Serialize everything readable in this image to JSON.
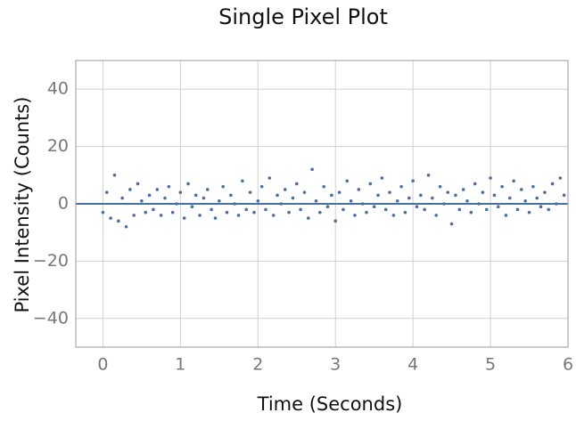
{
  "chart_data": {
    "type": "scatter",
    "title": "Single Pixel Plot",
    "x_label": "Time (Seconds)",
    "y_label": "Pixel Intensity (Counts)",
    "color": "#4a6fa5",
    "hline": 0,
    "grid": true,
    "xlim": [
      -0.35,
      6
    ],
    "ylim": [
      -50,
      50
    ],
    "xticks": [
      0,
      1,
      2,
      3,
      4,
      5,
      6
    ],
    "yticks": [
      {
        "value": -40,
        "label": "−40"
      },
      {
        "value": -20,
        "label": "−20"
      },
      0,
      20,
      40
    ],
    "x": [
      0,
      0.05,
      0.1,
      0.15,
      0.2,
      0.25,
      0.3,
      0.35,
      0.4,
      0.45,
      0.5,
      0.55,
      0.6,
      0.65,
      0.7,
      0.75,
      0.8,
      0.85,
      0.9,
      0.95,
      1,
      1.05,
      1.1,
      1.15,
      1.2,
      1.25,
      1.3,
      1.35,
      1.4,
      1.45,
      1.5,
      1.55,
      1.6,
      1.65,
      1.7,
      1.75,
      1.8,
      1.85,
      1.9,
      1.95,
      2,
      2.05,
      2.1,
      2.15,
      2.2,
      2.25,
      2.3,
      2.35,
      2.4,
      2.45,
      2.5,
      2.55,
      2.6,
      2.65,
      2.7,
      2.75,
      2.8,
      2.85,
      2.9,
      2.95,
      3,
      3.05,
      3.1,
      3.15,
      3.2,
      3.25,
      3.3,
      3.35,
      3.4,
      3.45,
      3.5,
      3.55,
      3.6,
      3.65,
      3.7,
      3.75,
      3.8,
      3.85,
      3.9,
      3.95,
      4,
      4.05,
      4.1,
      4.15,
      4.2,
      4.25,
      4.3,
      4.35,
      4.4,
      4.45,
      4.5,
      4.55,
      4.6,
      4.65,
      4.7,
      4.75,
      4.8,
      4.85,
      4.9,
      4.95,
      5,
      5.05,
      5.1,
      5.15,
      5.2,
      5.25,
      5.3,
      5.35,
      5.4,
      5.45,
      5.5,
      5.55,
      5.6,
      5.65,
      5.7,
      5.75,
      5.8,
      5.85,
      5.9,
      5.95
    ],
    "values": [
      -3,
      4,
      -5,
      10,
      -6,
      2,
      -8,
      5,
      -4,
      7,
      1,
      -3,
      3,
      -2,
      5,
      -4,
      2,
      6,
      -3,
      0,
      4,
      -5,
      7,
      -1,
      3,
      -4,
      2,
      5,
      -2,
      -5,
      1,
      6,
      -3,
      3,
      0,
      -4,
      8,
      -2,
      4,
      -3,
      1,
      6,
      -2,
      9,
      -4,
      3,
      0,
      5,
      -3,
      2,
      7,
      -2,
      4,
      -5,
      12,
      1,
      -3,
      6,
      -1,
      3,
      -6,
      4,
      -2,
      8,
      1,
      -4,
      5,
      0,
      -3,
      7,
      -1,
      3,
      9,
      -2,
      4,
      -4,
      1,
      6,
      -3,
      2,
      8,
      -1,
      3,
      -2,
      10,
      2,
      -4,
      6,
      0,
      4,
      -7,
      3,
      -2,
      5,
      1,
      -3,
      7,
      0,
      4,
      -2,
      9,
      3,
      -1,
      6,
      -4,
      2,
      8,
      -2,
      5,
      1,
      -3,
      6,
      2,
      -1,
      4,
      -2,
      7,
      0,
      9,
      3
    ]
  }
}
